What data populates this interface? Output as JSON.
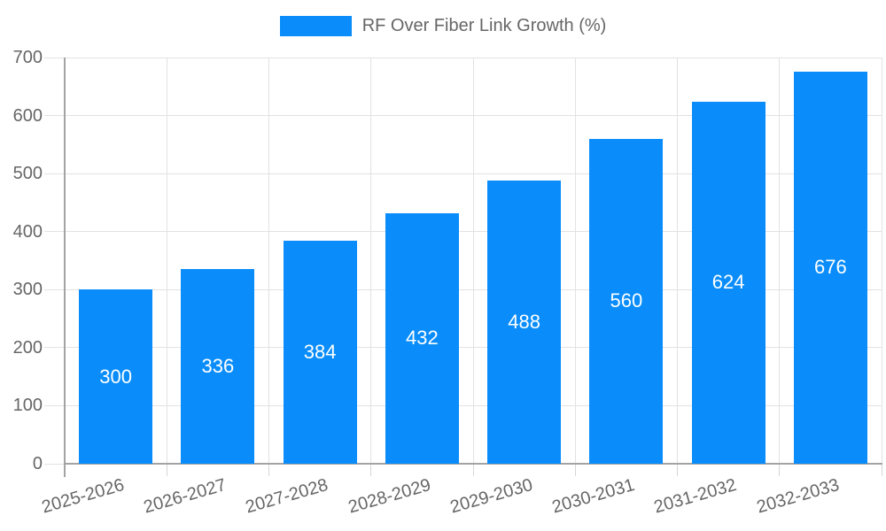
{
  "chart_data": {
    "type": "bar",
    "title": "",
    "legend_label": "RF Over Fiber Link Growth (%)",
    "legend_position": "top",
    "categories": [
      "2025-2026",
      "2026-2027",
      "2027-2028",
      "2028-2029",
      "2029-2030",
      "2030-2031",
      "2031-2032",
      "2032-2033"
    ],
    "values": [
      300,
      336,
      384,
      432,
      488,
      560,
      624,
      676
    ],
    "xlabel": "",
    "ylabel": "",
    "ylim": [
      0,
      700
    ],
    "yticks": [
      0,
      100,
      200,
      300,
      400,
      500,
      600,
      700
    ],
    "grid": true,
    "bar_color": "#0a8dfa",
    "value_label_color": "#ffffff",
    "tick_label_color": "#666666",
    "gridline_color": "#e2e2e2",
    "tick_color": "#d6d6d6",
    "axis_color": "#a3a3a3"
  }
}
